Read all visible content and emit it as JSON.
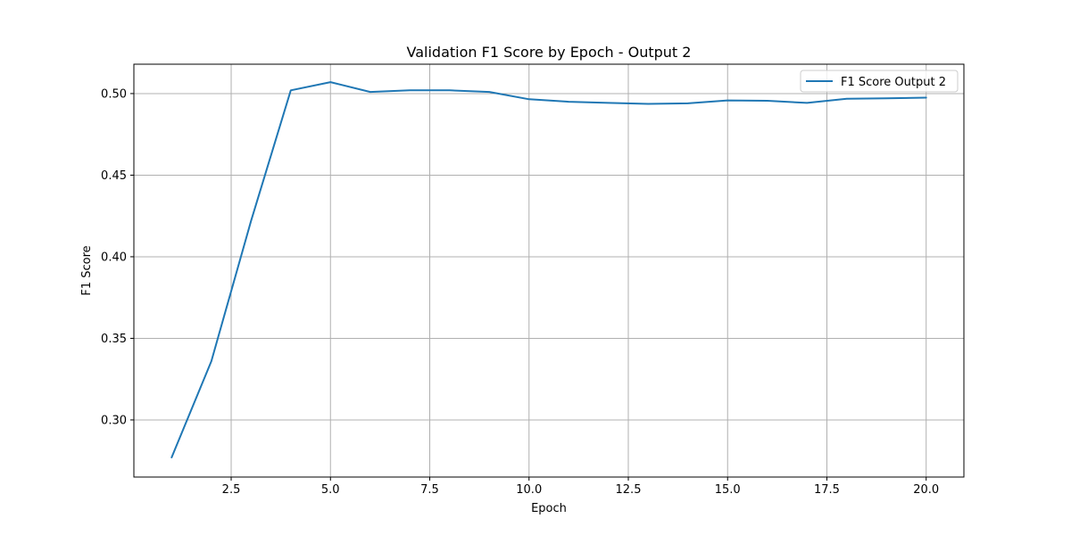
{
  "chart_data": {
    "type": "line",
    "title": "Validation F1 Score by Epoch - Output 2",
    "xlabel": "Epoch",
    "ylabel": "F1 Score",
    "xlim": [
      0.05,
      20.95
    ],
    "ylim": [
      0.265,
      0.518
    ],
    "xticks": [
      2.5,
      5.0,
      7.5,
      10.0,
      12.5,
      15.0,
      17.5,
      20.0
    ],
    "xtick_labels": [
      "2.5",
      "5.0",
      "7.5",
      "10.0",
      "12.5",
      "15.0",
      "17.5",
      "20.0"
    ],
    "yticks": [
      0.3,
      0.35,
      0.4,
      0.45,
      0.5
    ],
    "ytick_labels": [
      "0.30",
      "0.35",
      "0.40",
      "0.45",
      "0.50"
    ],
    "grid": true,
    "legend_position": "top-right",
    "series": [
      {
        "name": "F1 Score Output 2",
        "color": "#1f77b4",
        "x": [
          1,
          2,
          3,
          4,
          5,
          6,
          7,
          8,
          9,
          10,
          11,
          12,
          13,
          14,
          15,
          16,
          17,
          18,
          19,
          20
        ],
        "values": [
          0.277,
          0.336,
          0.422,
          0.502,
          0.507,
          0.501,
          0.502,
          0.502,
          0.501,
          0.4965,
          0.495,
          0.4943,
          0.4937,
          0.494,
          0.4958,
          0.4956,
          0.4943,
          0.4968,
          0.4971,
          0.4975
        ]
      }
    ]
  }
}
